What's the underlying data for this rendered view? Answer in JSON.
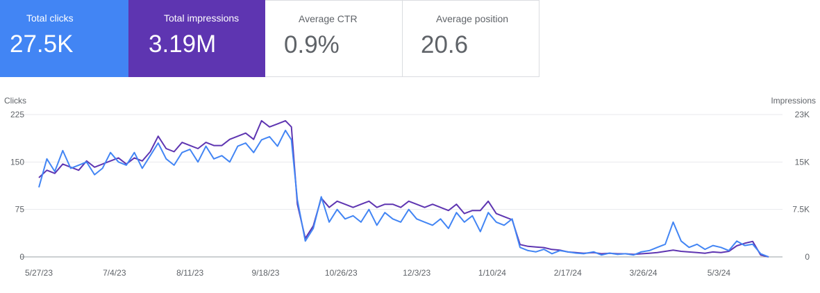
{
  "cards": [
    {
      "label": "Total clicks",
      "value": "27.5K",
      "color": "#4285f4"
    },
    {
      "label": "Total impressions",
      "value": "3.19M",
      "color": "#5e35b1"
    },
    {
      "label": "Average CTR",
      "value": "0.9%"
    },
    {
      "label": "Average position",
      "value": "20.6"
    }
  ],
  "chart_data": {
    "type": "line",
    "title": "",
    "y_left_label": "Clicks",
    "y_right_label": "Impressions",
    "y_left_ticks": [
      "0",
      "75",
      "150",
      "225"
    ],
    "y_right_ticks": [
      "0",
      "7.5K",
      "15K",
      "23K"
    ],
    "ylim_left": [
      0,
      225
    ],
    "ylim_right": [
      0,
      23000
    ],
    "x_ticks": [
      "5/27/23",
      "7/4/23",
      "8/11/23",
      "9/18/23",
      "10/26/23",
      "12/3/23",
      "1/10/24",
      "2/17/24",
      "3/26/24",
      "5/3/24"
    ],
    "x_start": "2023-05-27",
    "grid": true,
    "series": [
      {
        "name": "Clicks",
        "color": "#4285f4",
        "axis": "left",
        "x": [
          "2023-05-27",
          "2023-05-31",
          "2023-06-04",
          "2023-06-08",
          "2023-06-12",
          "2023-06-16",
          "2023-06-20",
          "2023-06-24",
          "2023-06-28",
          "2023-07-02",
          "2023-07-06",
          "2023-07-10",
          "2023-07-14",
          "2023-07-18",
          "2023-07-22",
          "2023-07-26",
          "2023-07-30",
          "2023-08-03",
          "2023-08-07",
          "2023-08-11",
          "2023-08-15",
          "2023-08-19",
          "2023-08-23",
          "2023-08-27",
          "2023-08-31",
          "2023-09-04",
          "2023-09-08",
          "2023-09-12",
          "2023-09-16",
          "2023-09-20",
          "2023-09-24",
          "2023-09-28",
          "2023-10-01",
          "2023-10-04",
          "2023-10-08",
          "2023-10-12",
          "2023-10-16",
          "2023-10-20",
          "2023-10-24",
          "2023-10-28",
          "2023-11-01",
          "2023-11-05",
          "2023-11-09",
          "2023-11-13",
          "2023-11-17",
          "2023-11-21",
          "2023-11-25",
          "2023-11-29",
          "2023-12-03",
          "2023-12-07",
          "2023-12-11",
          "2023-12-15",
          "2023-12-19",
          "2023-12-23",
          "2023-12-27",
          "2023-12-31",
          "2024-01-04",
          "2024-01-08",
          "2024-01-12",
          "2024-01-16",
          "2024-01-20",
          "2024-01-24",
          "2024-01-28",
          "2024-02-01",
          "2024-02-05",
          "2024-02-09",
          "2024-02-13",
          "2024-02-17",
          "2024-02-21",
          "2024-02-25",
          "2024-03-01",
          "2024-03-05",
          "2024-03-09",
          "2024-03-13",
          "2024-03-17",
          "2024-03-21",
          "2024-03-25",
          "2024-03-29",
          "2024-04-02",
          "2024-04-06",
          "2024-04-10",
          "2024-04-14",
          "2024-04-18",
          "2024-04-22",
          "2024-04-26",
          "2024-04-30",
          "2024-05-04",
          "2024-05-08",
          "2024-05-12",
          "2024-05-16",
          "2024-05-20",
          "2024-05-24",
          "2024-05-28"
        ],
        "values": [
          110,
          155,
          135,
          168,
          140,
          145,
          150,
          130,
          140,
          165,
          150,
          145,
          165,
          140,
          160,
          180,
          155,
          145,
          165,
          170,
          150,
          175,
          155,
          160,
          150,
          175,
          180,
          165,
          185,
          190,
          175,
          200,
          185,
          90,
          25,
          45,
          95,
          55,
          75,
          60,
          65,
          55,
          75,
          50,
          70,
          60,
          55,
          75,
          60,
          55,
          50,
          60,
          45,
          70,
          55,
          65,
          40,
          70,
          55,
          50,
          60,
          15,
          10,
          8,
          12,
          5,
          10,
          8,
          6,
          5,
          8,
          3,
          6,
          4,
          5,
          3,
          8,
          10,
          15,
          20,
          55,
          25,
          15,
          20,
          12,
          18,
          15,
          10,
          25,
          18,
          20,
          5,
          0
        ]
      },
      {
        "name": "Impressions",
        "color": "#5e35b1",
        "axis": "right",
        "x": [
          "2023-05-27",
          "2023-05-31",
          "2023-06-04",
          "2023-06-08",
          "2023-06-12",
          "2023-06-16",
          "2023-06-20",
          "2023-06-24",
          "2023-06-28",
          "2023-07-02",
          "2023-07-06",
          "2023-07-10",
          "2023-07-14",
          "2023-07-18",
          "2023-07-22",
          "2023-07-26",
          "2023-07-30",
          "2023-08-03",
          "2023-08-07",
          "2023-08-11",
          "2023-08-15",
          "2023-08-19",
          "2023-08-23",
          "2023-08-27",
          "2023-08-31",
          "2023-09-04",
          "2023-09-08",
          "2023-09-12",
          "2023-09-16",
          "2023-09-20",
          "2023-09-24",
          "2023-09-28",
          "2023-10-01",
          "2023-10-04",
          "2023-10-08",
          "2023-10-12",
          "2023-10-16",
          "2023-10-20",
          "2023-10-24",
          "2023-10-28",
          "2023-11-01",
          "2023-11-05",
          "2023-11-09",
          "2023-11-13",
          "2023-11-17",
          "2023-11-21",
          "2023-11-25",
          "2023-11-29",
          "2023-12-03",
          "2023-12-07",
          "2023-12-11",
          "2023-12-15",
          "2023-12-19",
          "2023-12-23",
          "2023-12-27",
          "2023-12-31",
          "2024-01-04",
          "2024-01-08",
          "2024-01-12",
          "2024-01-16",
          "2024-01-20",
          "2024-01-24",
          "2024-01-28",
          "2024-02-01",
          "2024-02-05",
          "2024-02-09",
          "2024-02-13",
          "2024-02-17",
          "2024-02-21",
          "2024-02-25",
          "2024-03-01",
          "2024-03-05",
          "2024-03-09",
          "2024-03-13",
          "2024-03-17",
          "2024-03-21",
          "2024-03-25",
          "2024-03-29",
          "2024-04-02",
          "2024-04-06",
          "2024-04-10",
          "2024-04-14",
          "2024-04-18",
          "2024-04-22",
          "2024-04-26",
          "2024-04-30",
          "2024-05-04",
          "2024-05-08",
          "2024-05-12",
          "2024-05-16",
          "2024-05-20",
          "2024-05-24",
          "2024-05-28"
        ],
        "values": [
          12800,
          14000,
          13500,
          15000,
          14500,
          14000,
          15500,
          14500,
          15000,
          15500,
          16000,
          15000,
          16000,
          15500,
          17000,
          19500,
          17500,
          17000,
          18500,
          18000,
          17500,
          18500,
          18000,
          18000,
          19000,
          19500,
          20000,
          19000,
          22000,
          21000,
          21500,
          22000,
          21000,
          8500,
          3000,
          5000,
          9500,
          8000,
          9000,
          8500,
          8000,
          8500,
          9000,
          8000,
          8500,
          8500,
          8000,
          9000,
          8500,
          8000,
          8500,
          8000,
          7500,
          8500,
          7000,
          7500,
          7500,
          9000,
          7000,
          6500,
          6000,
          2000,
          1700,
          1600,
          1500,
          1200,
          1100,
          800,
          700,
          600,
          700,
          500,
          600,
          500,
          500,
          400,
          500,
          600,
          700,
          900,
          1100,
          900,
          800,
          700,
          600,
          800,
          700,
          900,
          1800,
          2200,
          2500,
          300,
          0
        ]
      }
    ]
  }
}
